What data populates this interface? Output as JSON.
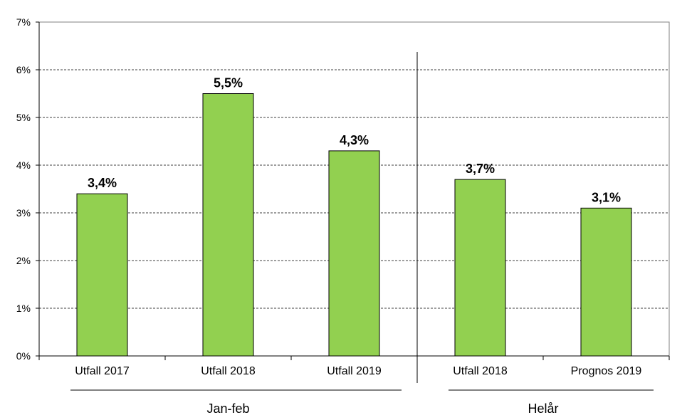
{
  "chart_data": {
    "type": "bar",
    "categories": [
      "Utfall 2017",
      "Utfall 2018",
      "Utfall 2019",
      "Utfall 2018",
      "Prognos 2019"
    ],
    "values": [
      3.4,
      5.5,
      4.3,
      3.7,
      3.1
    ],
    "value_labels": [
      "3,4%",
      "5,5%",
      "4,3%",
      "3,7%",
      "3,1%"
    ],
    "groups": [
      {
        "label": "Jan-feb",
        "category_count": 3
      },
      {
        "label": "Helår",
        "category_count": 2
      }
    ],
    "ylim": [
      0,
      7
    ],
    "yticks": [
      0,
      1,
      2,
      3,
      4,
      5,
      6,
      7
    ],
    "ytick_labels": [
      "0%",
      "1%",
      "2%",
      "3%",
      "4%",
      "5%",
      "6%",
      "7%"
    ],
    "grid": true,
    "grid_style": "dashed",
    "legend": false,
    "bar_color": "#92d050",
    "bar_edge_color": "#000000"
  }
}
